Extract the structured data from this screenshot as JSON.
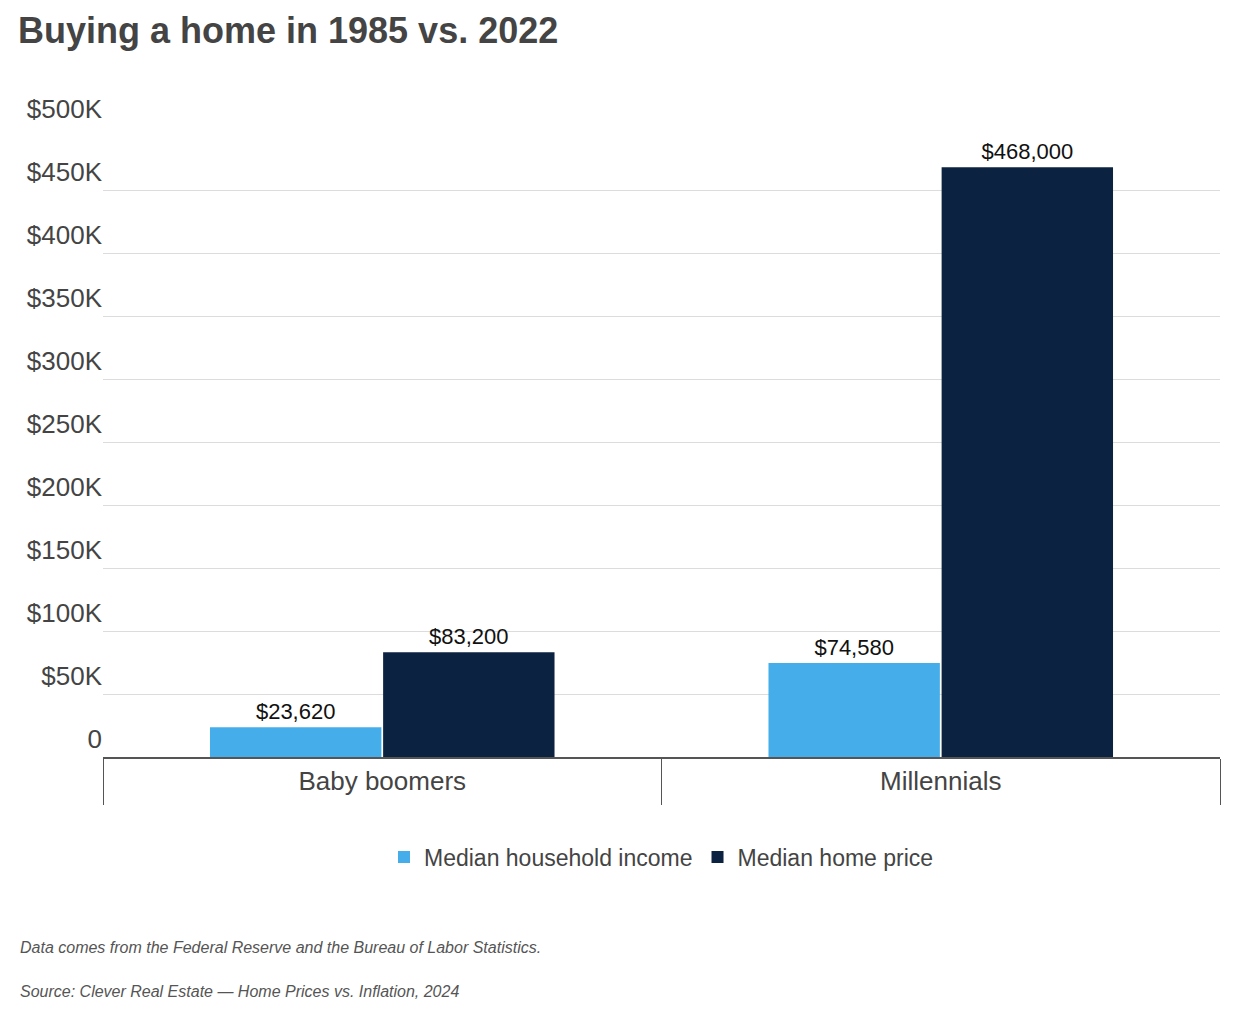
{
  "chart_data": {
    "type": "bar",
    "title": "Buying a home in 1985 vs. 2022",
    "categories": [
      "Baby boomers",
      "Millennials"
    ],
    "series": [
      {
        "name": "Median household income",
        "color": "#45aeea",
        "values": [
          23620,
          74580
        ],
        "value_labels": [
          "$23,620",
          "$74,580"
        ]
      },
      {
        "name": "Median home price",
        "color": "#0b2240",
        "values": [
          83200,
          468000
        ],
        "value_labels": [
          "$83,200",
          "$468,000"
        ]
      }
    ],
    "ylim": [
      0,
      500000
    ],
    "yticks": [
      0,
      {
        "value": 50000,
        "label": "$50K"
      },
      {
        "value": 100000,
        "label": "$100K"
      },
      {
        "value": 150000,
        "label": "$150K"
      },
      {
        "value": 200000,
        "label": "$200K"
      },
      {
        "value": 250000,
        "label": "$250K"
      },
      {
        "value": 300000,
        "label": "$300K"
      },
      {
        "value": 350000,
        "label": "$350K"
      },
      {
        "value": 400000,
        "label": "$400K"
      },
      {
        "value": 450000,
        "label": "$450K"
      },
      {
        "value": 500000,
        "label": "$500K"
      }
    ],
    "grid": true,
    "legend": "bottom",
    "data_labels": true,
    "annotations": [
      "Data comes from the Federal Reserve and the Bureau of Labor Statistics.",
      "Source: Clever Real Estate — Home Prices vs. Inflation, 2024"
    ]
  }
}
